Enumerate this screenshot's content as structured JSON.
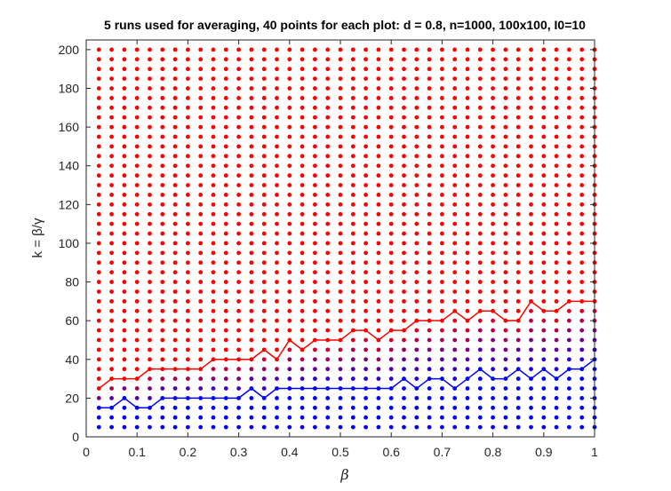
{
  "chart_data": {
    "type": "scatter",
    "title": "5 runs used for averaging, 40 points for each plot: d = 0.8, n=1000, 100x100, I0=10",
    "xlabel": "β",
    "ylabel": "k = β/γ",
    "xlim": [
      0,
      1
    ],
    "ylim": [
      0,
      205
    ],
    "x_ticks": [
      0,
      0.1,
      0.2,
      0.3,
      0.4,
      0.5,
      0.6,
      0.7,
      0.8,
      0.9,
      1
    ],
    "x_tick_labels": [
      "0",
      "0.1",
      "0.2",
      "0.3",
      "0.4",
      "0.5",
      "0.6",
      "0.7",
      "0.8",
      "0.9",
      "1"
    ],
    "y_ticks": [
      0,
      20,
      40,
      60,
      80,
      100,
      120,
      140,
      160,
      180,
      200
    ],
    "y_tick_labels": [
      "0",
      "20",
      "40",
      "60",
      "80",
      "100",
      "120",
      "140",
      "160",
      "180",
      "200"
    ],
    "grid": false,
    "x": [
      0.025,
      0.05,
      0.075,
      0.1,
      0.125,
      0.15,
      0.175,
      0.2,
      0.225,
      0.25,
      0.275,
      0.3,
      0.325,
      0.35,
      0.375,
      0.4,
      0.425,
      0.45,
      0.475,
      0.5,
      0.525,
      0.55,
      0.575,
      0.6,
      0.625,
      0.65,
      0.675,
      0.7,
      0.725,
      0.75,
      0.775,
      0.8,
      0.825,
      0.85,
      0.875,
      0.9,
      0.925,
      0.95,
      0.975,
      1.0
    ],
    "k_grid": [
      5,
      10,
      15,
      20,
      25,
      30,
      35,
      40,
      45,
      50,
      55,
      60,
      65,
      70,
      75,
      80,
      85,
      90,
      95,
      100,
      105,
      110,
      115,
      120,
      125,
      130,
      135,
      140,
      145,
      150,
      155,
      160,
      165,
      170,
      175,
      180,
      185,
      190,
      195,
      200
    ],
    "series": [
      {
        "color": "#ff0000",
        "values": [
          25,
          30,
          30,
          30,
          35,
          35,
          35,
          35,
          35,
          40,
          40,
          40,
          40,
          45,
          40,
          50,
          45,
          50,
          50,
          50,
          55,
          55,
          50,
          55,
          55,
          60,
          60,
          60,
          65,
          60,
          65,
          65,
          60,
          60,
          70,
          65,
          65,
          70,
          70,
          70
        ]
      },
      {
        "color": "#0000ff",
        "values": [
          15,
          15,
          20,
          15,
          15,
          20,
          20,
          20,
          20,
          20,
          20,
          20,
          25,
          20,
          25,
          25,
          25,
          25,
          25,
          25,
          25,
          25,
          25,
          25,
          30,
          25,
          30,
          30,
          25,
          30,
          35,
          30,
          30,
          35,
          30,
          35,
          30,
          35,
          35,
          40
        ]
      }
    ],
    "colors": {
      "high": "#ff0000",
      "low": "#0000ff",
      "axis": "#262626"
    }
  }
}
